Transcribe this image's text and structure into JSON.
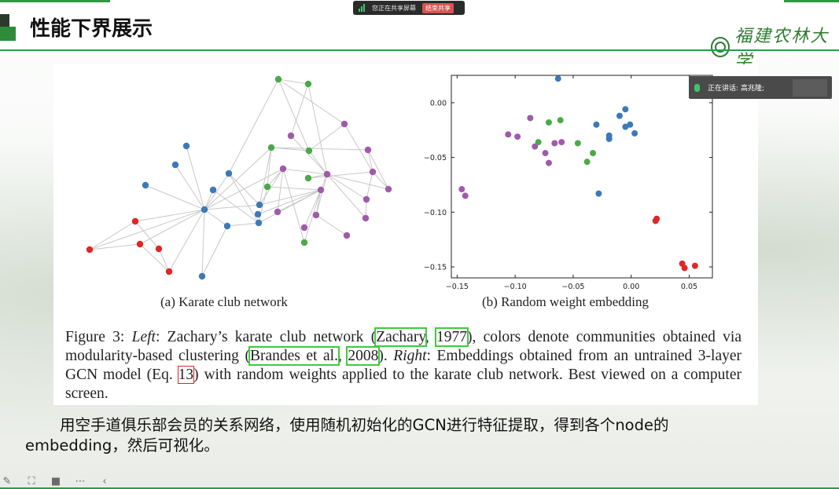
{
  "share_bar": {
    "status": "您正在共享屏幕",
    "stop_label": "结束共享"
  },
  "slide": {
    "title": "性能下界展示",
    "logo_text": "福建农林大学"
  },
  "figure": {
    "caption_a": "(a) Karate club network",
    "caption_b": "(b) Random weight embedding",
    "text": {
      "p1": "Figure 3: ",
      "left": "Left",
      "p2": ": Zachary’s karate club network (",
      "ref1a": "Zachary",
      "p3": ", ",
      "ref1b": "1977",
      "p4": "), colors denote communities obtained via modularity-based clustering (",
      "ref2a": "Brandes et al.",
      "p5": ", ",
      "ref2b": "2008",
      "p6": "). ",
      "right": "Right",
      "p7": ": Embeddings obtained from an untrained 3-layer GCN model (Eq. ",
      "ref3": "13",
      "p8": ") with random weights applied to the karate club network. Best viewed on a computer screen."
    }
  },
  "chart_data": {
    "type": "scatter",
    "xlim": [
      -0.155,
      0.07
    ],
    "ylim": [
      -0.16,
      0.025
    ],
    "xticks": [
      -0.15,
      -0.1,
      -0.05,
      0.0,
      0.05
    ],
    "xtick_labels": [
      "−0.15",
      "−0.10",
      "−0.05",
      "0.00",
      "0.05"
    ],
    "yticks": [
      0.0,
      -0.05,
      -0.1,
      -0.15
    ],
    "ytick_labels": [
      "0.00",
      "−0.05",
      "−0.10",
      "−0.15"
    ],
    "grid": false,
    "colors": {
      "blue": "#3a7ab8",
      "purple": "#a05aaa",
      "green": "#4aaa48",
      "red": "#e02626"
    },
    "series": [
      {
        "color": "blue",
        "points": [
          [
            -0.063,
            0.022
          ],
          [
            -0.005,
            -0.006
          ],
          [
            -0.01,
            -0.012
          ],
          [
            -0.03,
            -0.02
          ],
          [
            -0.005,
            -0.022
          ],
          [
            -0.001,
            -0.02
          ],
          [
            0.003,
            -0.028
          ],
          [
            -0.019,
            -0.03
          ],
          [
            -0.019,
            -0.033
          ],
          [
            -0.028,
            -0.083
          ]
        ]
      },
      {
        "color": "purple",
        "points": [
          [
            -0.087,
            -0.014
          ],
          [
            -0.106,
            -0.029
          ],
          [
            -0.098,
            -0.031
          ],
          [
            -0.083,
            -0.04
          ],
          [
            -0.066,
            -0.037
          ],
          [
            -0.06,
            -0.036
          ],
          [
            -0.074,
            -0.046
          ],
          [
            -0.071,
            -0.055
          ],
          [
            -0.146,
            -0.079
          ],
          [
            -0.143,
            -0.085
          ]
        ]
      },
      {
        "color": "green",
        "points": [
          [
            -0.061,
            -0.016
          ],
          [
            -0.071,
            -0.018
          ],
          [
            -0.08,
            -0.036
          ],
          [
            -0.046,
            -0.037
          ],
          [
            -0.033,
            -0.046
          ],
          [
            -0.038,
            -0.054
          ]
        ]
      },
      {
        "color": "red",
        "points": [
          [
            0.022,
            -0.106
          ],
          [
            0.021,
            -0.108
          ],
          [
            0.044,
            -0.147
          ],
          [
            0.046,
            -0.151
          ],
          [
            0.055,
            -0.149
          ]
        ]
      }
    ]
  },
  "speaker": {
    "label": "正在讲话:",
    "name": "高兆隆;"
  },
  "description": {
    "line1": "用空手道俱乐部会员的关系网络，使用随机初始化的GCN进行特征提取，得到各个node的",
    "line2": "embedding，然后可视化。"
  },
  "toolbar": {
    "icons": [
      "pen-icon",
      "screenshot-icon",
      "camera-icon",
      "more-icon",
      "collapse-icon"
    ]
  }
}
